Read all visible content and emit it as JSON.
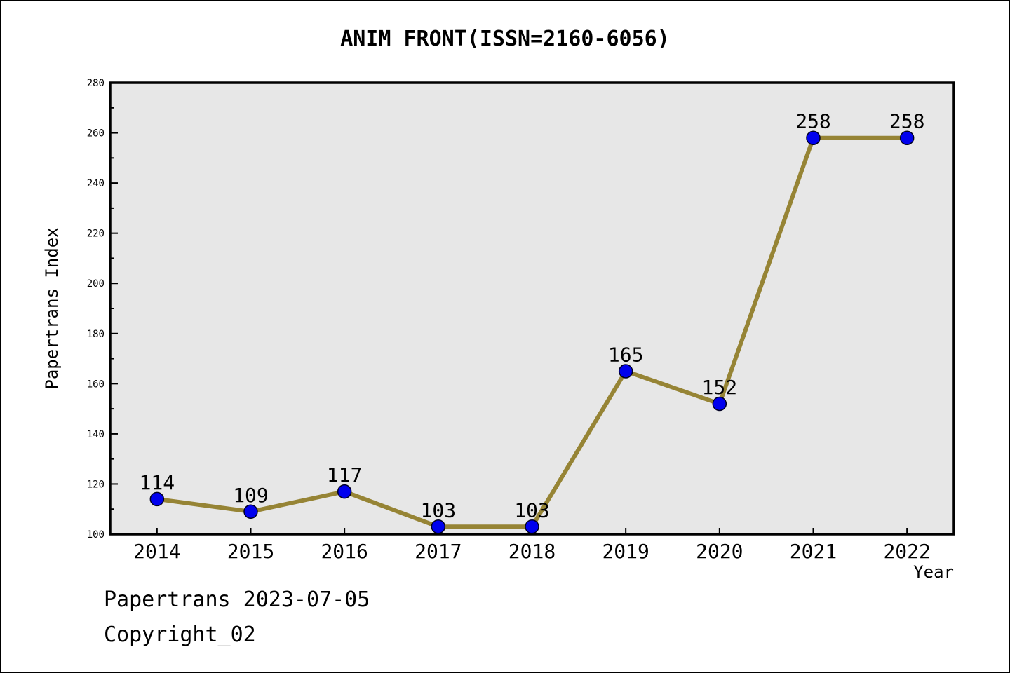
{
  "title": "ANIM FRONT(ISSN=2160-6056)",
  "footer": {
    "line1": "Papertrans 2023-07-05",
    "line2": "Copyright_02"
  },
  "chart_data": {
    "type": "line",
    "title": "ANIM FRONT(ISSN=2160-6056)",
    "x": [
      2014,
      2015,
      2016,
      2017,
      2018,
      2019,
      2020,
      2021,
      2022
    ],
    "series": [
      {
        "name": "Papertrans Index",
        "values": [
          114,
          109,
          117,
          103,
          103,
          165,
          152,
          258,
          258
        ]
      }
    ],
    "point_labels": [
      "114",
      "109",
      "117",
      "103",
      "103",
      "165",
      "152",
      "258",
      "258"
    ],
    "xlabel": "Year",
    "ylabel": "Papertrans Index",
    "xlim": [
      2013.5,
      2022.5
    ],
    "ylim": [
      100,
      280
    ],
    "y_major_step": 20,
    "y_minor_step": 10,
    "x_tick_labels": [
      "2014",
      "2015",
      "2016",
      "2017",
      "2018",
      "2019",
      "2020",
      "2021",
      "2022"
    ],
    "y_tick_labels": [
      "100",
      "120",
      "140",
      "160",
      "180",
      "200",
      "220",
      "240",
      "260",
      "280"
    ],
    "grid": false,
    "legend_position": "none",
    "colors": {
      "line": "#968435",
      "marker_fill": "#0000ee",
      "marker_edge": "#000022",
      "plot_bg": "#e7e7e7",
      "figure_bg": "#ffffff",
      "axis": "#000000",
      "text": "#000000"
    }
  }
}
